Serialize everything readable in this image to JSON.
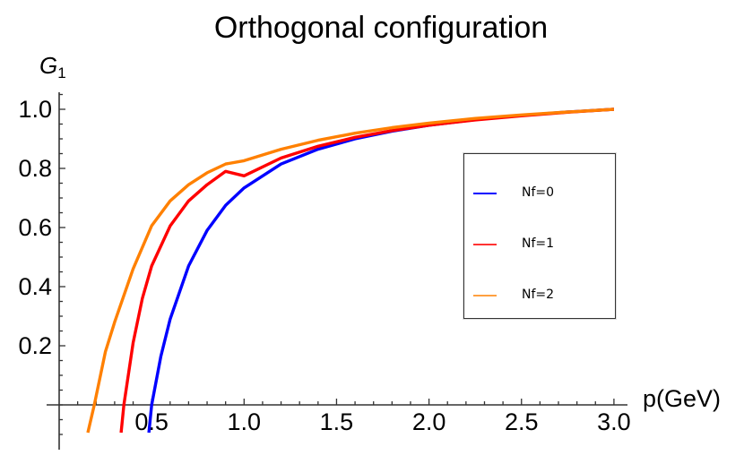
{
  "chart_data": {
    "type": "line",
    "title": "Orthogonal configuration",
    "xlabel": "p(GeV)",
    "ylabel": "G1",
    "xlim": [
      0,
      3.0
    ],
    "ylim": [
      -0.1,
      1.05
    ],
    "x_ticks": [
      "0.5",
      "1.0",
      "1.5",
      "2.0",
      "2.5",
      "3.0"
    ],
    "y_ticks": [
      "0.2",
      "0.4",
      "0.6",
      "0.8",
      "1.0"
    ],
    "grid": false,
    "legend_position": "right-center",
    "series": [
      {
        "name": "Nf=0",
        "color": "#0000ff",
        "x": [
          0.485,
          0.5,
          0.55,
          0.6,
          0.7,
          0.8,
          0.9,
          1.0,
          1.2,
          1.4,
          1.6,
          1.8,
          2.0,
          2.25,
          2.5,
          2.75,
          3.0
        ],
        "y": [
          -0.094,
          0.0,
          0.165,
          0.29,
          0.47,
          0.59,
          0.675,
          0.734,
          0.815,
          0.865,
          0.9,
          0.926,
          0.946,
          0.965,
          0.979,
          0.991,
          1.0
        ]
      },
      {
        "name": "Nf=1",
        "color": "#ff0000",
        "x": [
          0.335,
          0.35,
          0.4,
          0.45,
          0.5,
          0.6,
          0.7,
          0.8,
          0.9,
          1.0,
          1.2,
          1.4,
          1.6,
          1.8,
          2.0,
          2.25,
          2.5,
          2.75,
          3.0
        ],
        "y": [
          -0.094,
          0.0,
          0.21,
          0.36,
          0.47,
          0.605,
          0.69,
          0.745,
          0.79,
          0.775,
          0.835,
          0.875,
          0.905,
          0.928,
          0.946,
          0.964,
          0.978,
          0.99,
          1.0
        ]
      },
      {
        "name": "Nf=2",
        "color": "#ff8000",
        "x": [
          0.155,
          0.19,
          0.25,
          0.3,
          0.4,
          0.5,
          0.6,
          0.7,
          0.8,
          0.9,
          1.0,
          1.2,
          1.4,
          1.6,
          1.8,
          2.0,
          2.25,
          2.5,
          2.75,
          3.0
        ],
        "y": [
          -0.094,
          0.0,
          0.18,
          0.28,
          0.46,
          0.606,
          0.69,
          0.745,
          0.785,
          0.815,
          0.826,
          0.865,
          0.895,
          0.919,
          0.938,
          0.953,
          0.969,
          0.981,
          0.991,
          1.0
        ]
      }
    ]
  }
}
